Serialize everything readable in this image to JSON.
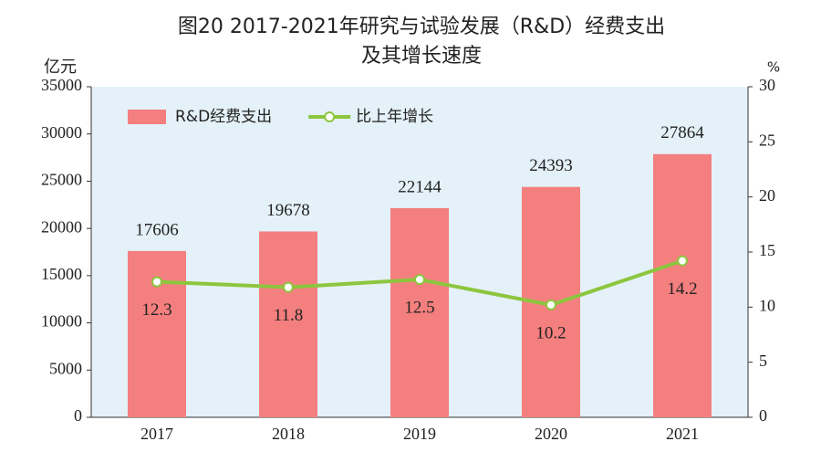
{
  "chart_data": {
    "type": "bar",
    "title": [
      "图20  2017-2021年研究与试验发展（R&D）经费支出",
      "及其增长速度"
    ],
    "y_label": "亿元",
    "y2_label": "%",
    "categories": [
      "2017",
      "2018",
      "2019",
      "2020",
      "2021"
    ],
    "series": [
      {
        "name": "R&D经费支出",
        "type": "bar",
        "color": "#f47f7f",
        "values": [
          17606,
          19678,
          22144,
          24393,
          27864
        ]
      },
      {
        "name": "比上年增长",
        "type": "line",
        "axis": "y2",
        "color": "#8cc63e",
        "values": [
          12.3,
          11.8,
          12.5,
          10.2,
          14.2
        ]
      }
    ],
    "ylim": [
      0,
      35000
    ],
    "yticks": [
      0,
      5000,
      10000,
      15000,
      20000,
      25000,
      30000,
      35000
    ],
    "y2lim": [
      0,
      30
    ],
    "y2ticks": [
      0,
      5,
      10,
      15,
      20,
      25,
      30
    ],
    "legend": "upper left",
    "grid": false
  }
}
